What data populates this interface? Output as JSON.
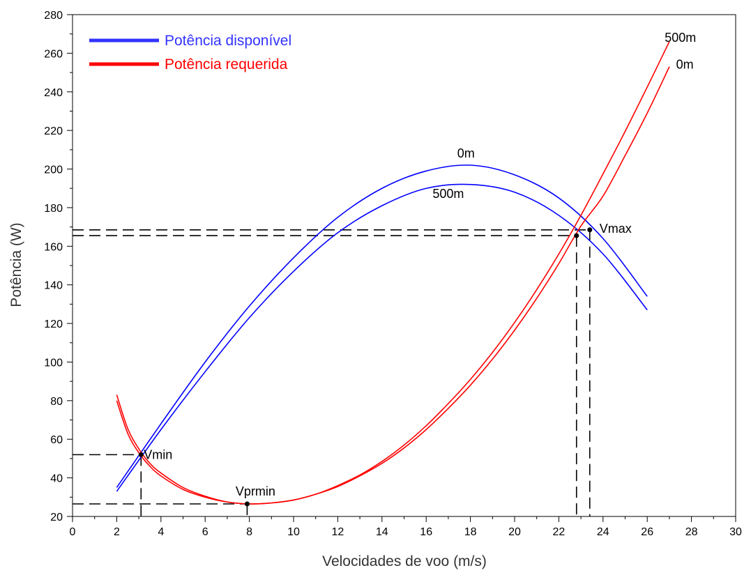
{
  "chart_data": {
    "type": "line",
    "xlabel": "Velocidades de voo (m/s)",
    "ylabel": "Potência (W)",
    "xlim": [
      0,
      30
    ],
    "ylim": [
      20,
      280
    ],
    "xticks": [
      0,
      2,
      4,
      6,
      8,
      10,
      12,
      14,
      16,
      18,
      20,
      22,
      24,
      26,
      28,
      30
    ],
    "yticks": [
      20,
      40,
      60,
      80,
      100,
      120,
      140,
      160,
      180,
      200,
      220,
      240,
      260,
      280
    ],
    "grid": false,
    "legend": {
      "position": "top-left",
      "entries": [
        {
          "label": "Potência disponível",
          "color": "#3333ff"
        },
        {
          "label": "Potência requerida",
          "color": "#ff0000"
        }
      ]
    },
    "colors": {
      "available": "#0000ff",
      "required": "#ff0000",
      "marker": "#000000",
      "axis": "#000000"
    },
    "series": [
      {
        "group": "available",
        "altitude_label": "0m",
        "x": [
          2,
          4,
          6,
          8,
          10,
          12,
          14,
          16,
          18,
          20,
          22,
          24,
          26
        ],
        "y": [
          35,
          68,
          100,
          129,
          154,
          175,
          190,
          199,
          202,
          197,
          185,
          164,
          134
        ]
      },
      {
        "group": "available",
        "altitude_label": "500m",
        "x": [
          2,
          4,
          6,
          8,
          10,
          12,
          14,
          16,
          18,
          20,
          22,
          24,
          26
        ],
        "y": [
          33,
          65,
          95,
          123,
          147,
          167,
          181,
          190,
          192,
          188,
          176,
          156,
          127
        ]
      },
      {
        "group": "required",
        "altitude_label": "0m",
        "x": [
          2,
          2.5,
          3,
          3.5,
          4,
          5,
          6,
          7,
          8,
          9,
          10,
          11,
          12,
          13,
          14,
          15,
          16,
          17,
          18,
          19,
          20,
          21,
          22,
          23,
          24,
          25,
          26,
          27
        ],
        "y": [
          80,
          63,
          53,
          46,
          41,
          34,
          30,
          27.5,
          26.5,
          27,
          28.5,
          31.5,
          35.5,
          41,
          47.5,
          55.5,
          65,
          76,
          88,
          101.5,
          116.5,
          133,
          151,
          170.5,
          186,
          207,
          229,
          253
        ]
      },
      {
        "group": "required",
        "altitude_label": "500m",
        "x": [
          2,
          2.5,
          3,
          3.5,
          4,
          5,
          6,
          7,
          8,
          9,
          10,
          11,
          12,
          13,
          14,
          15,
          16,
          17,
          18,
          19,
          20,
          21,
          22,
          23,
          24,
          25,
          26,
          27
        ],
        "y": [
          83,
          65.5,
          55,
          47.5,
          42.5,
          35,
          30.5,
          27.5,
          26.5,
          27,
          28.5,
          31.5,
          36,
          41.5,
          48.5,
          57,
          67,
          78.5,
          91,
          105,
          120.5,
          137.5,
          156,
          176,
          197.5,
          219.5,
          242.5,
          266
        ]
      }
    ],
    "curve_labels": [
      {
        "text": "0m",
        "x": 17.8,
        "y": 206
      },
      {
        "text": "500m",
        "x": 17.0,
        "y": 185
      },
      {
        "text": "500m",
        "x": 27.5,
        "y": 266
      },
      {
        "text": "0m",
        "x": 27.7,
        "y": 252
      }
    ],
    "points": [
      {
        "label": "Vmin",
        "x": 3.1,
        "y": 52
      },
      {
        "label": "Vprmin",
        "x": 7.9,
        "y": 26.5
      },
      {
        "label": "",
        "x": 22.8,
        "y": 165.5
      },
      {
        "label": "Vmax",
        "x": 23.4,
        "y": 168.5
      }
    ],
    "guide_lines": [
      {
        "x": 3.1,
        "y": 52
      },
      {
        "x": 7.9,
        "y": 26.5
      },
      {
        "x": 22.8,
        "y": 165.5
      },
      {
        "x": 23.4,
        "y": 168.5
      }
    ]
  }
}
